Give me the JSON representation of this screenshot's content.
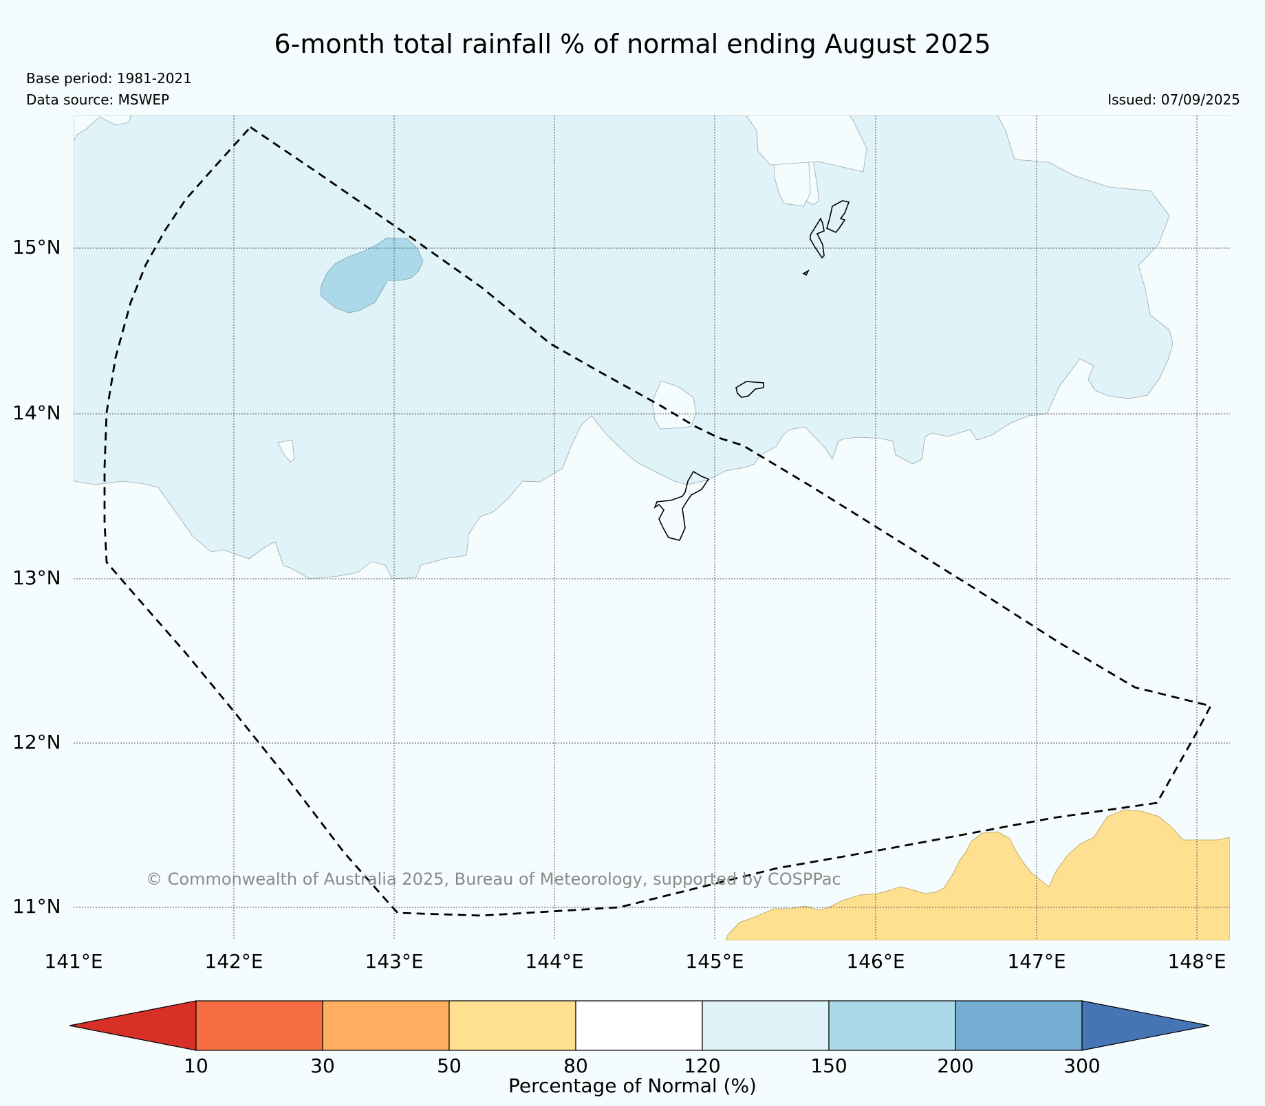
{
  "title": "6-month total rainfall % of normal ending August 2025",
  "base_period": "Base period: 1981-2021",
  "data_source": "Data source: MSWEP",
  "issued": "Issued: 07/09/2025",
  "copyright": "© Commonwealth of Australia 2025, Bureau of Meteorology, supported by COSPPac",
  "axes": {
    "lon_ticks": [
      "141°E",
      "142°E",
      "143°E",
      "144°E",
      "145°E",
      "146°E",
      "147°E",
      "148°E"
    ],
    "lat_ticks": [
      "15°N",
      "14°N",
      "13°N",
      "12°N",
      "11°N"
    ]
  },
  "colorbar": {
    "label": "Percentage of Normal (%)",
    "ticks": [
      "10",
      "30",
      "50",
      "80",
      "120",
      "150",
      "200",
      "300"
    ],
    "colors": {
      "lt10": "#d73027",
      "c10_30": "#f46d43",
      "c30_50": "#fdae61",
      "c50_80": "#fee090",
      "c80_120": "#ffffff",
      "c120_150": "#e0f3f8",
      "c150_200": "#abd9e9",
      "c200_300": "#74add1",
      "gt300": "#4575b4"
    }
  },
  "legend_regions": {
    "map_background": "#f5fcfd",
    "wet_region": "#e0f3f8",
    "very_wet_region": "#abd9e9",
    "dry_region": "#fee090"
  }
}
